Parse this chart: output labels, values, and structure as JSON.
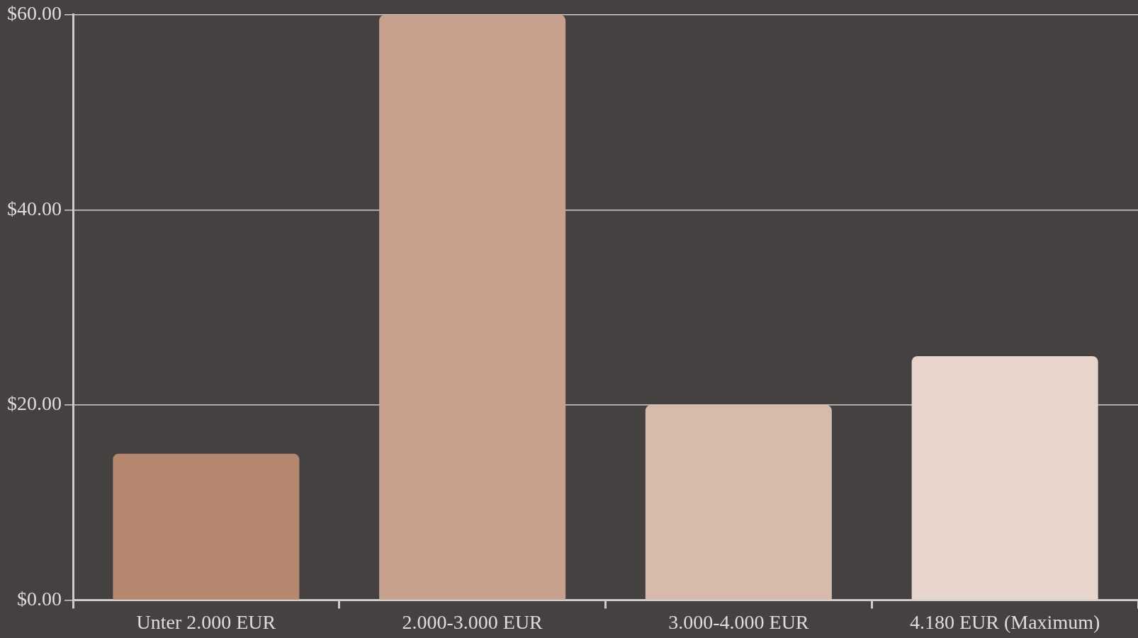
{
  "chart_data": {
    "type": "bar",
    "categories": [
      "Unter 2.000 EUR",
      "2.000-3.000 EUR",
      "3.000-4.000 EUR",
      "4.180 EUR (Maximum)"
    ],
    "values": [
      15,
      60,
      20,
      25
    ],
    "colors": [
      "#b5876f",
      "#c7a18e",
      "#d6bbad",
      "#e7d5cc"
    ],
    "ylim": [
      0,
      60
    ],
    "yticks": [
      {
        "value": 0,
        "label": "$0.00"
      },
      {
        "value": 20,
        "label": "$20.00"
      },
      {
        "value": 40,
        "label": "$40.00"
      },
      {
        "value": 60,
        "label": "$60.00"
      }
    ],
    "grid": "y",
    "legend": false
  }
}
